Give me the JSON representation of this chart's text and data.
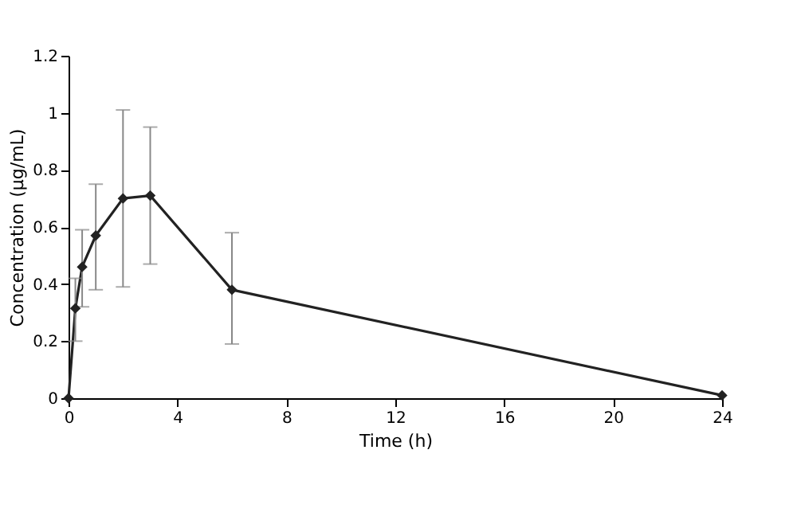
{
  "chart_data": {
    "type": "line",
    "xlabel": "Time (h)",
    "ylabel": "Concentration (µg/mL)",
    "x": [
      0,
      0.25,
      0.5,
      1,
      2,
      3,
      6,
      24
    ],
    "series": [
      {
        "color": "#222222",
        "values": [
          0,
          0.315,
          0.46,
          0.57,
          0.7,
          0.71,
          0.38,
          0.01
        ],
        "errors": [
          null,
          [
            0.2,
            0.42
          ],
          [
            0.32,
            0.59
          ],
          [
            0.38,
            0.75
          ],
          [
            0.39,
            1.01
          ],
          [
            0.47,
            0.95
          ],
          [
            0.19,
            0.58
          ],
          null
        ]
      }
    ],
    "xlim": [
      0,
      24
    ],
    "xticks": [
      0,
      4,
      8,
      12,
      16,
      20,
      24
    ],
    "ylim": [
      0,
      1.2
    ],
    "yticks": [
      0,
      0.2,
      0.4,
      0.6,
      0.8,
      1,
      1.2
    ],
    "marker": "diamond",
    "line_style": "solid",
    "grid": false
  }
}
